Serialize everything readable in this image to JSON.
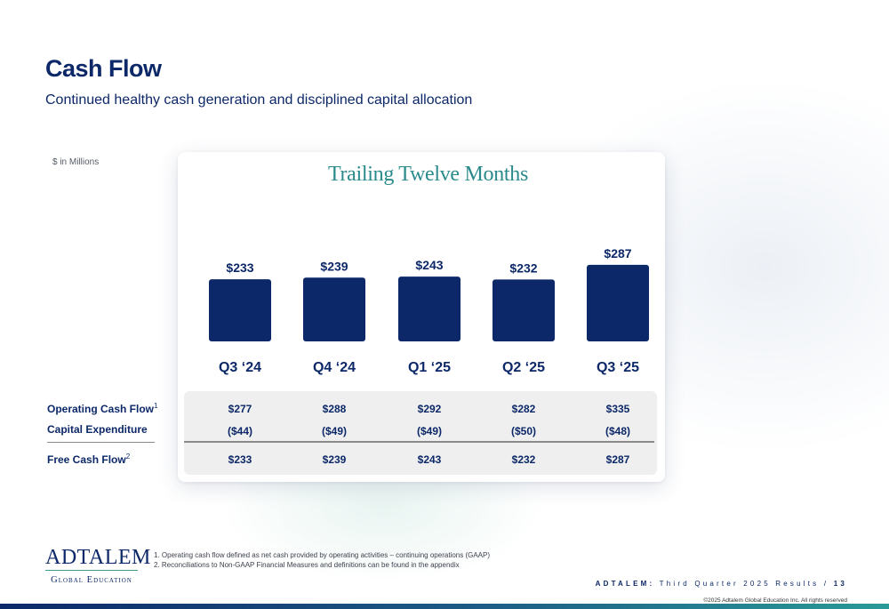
{
  "slide": {
    "title": "Cash Flow",
    "subtitle": "Continued healthy cash generation and disciplined capital allocation",
    "units": "$ in Millions"
  },
  "chart_data": {
    "type": "bar",
    "title": "Trailing Twelve Months",
    "categories": [
      "Q3 ‘24",
      "Q4 ‘24",
      "Q1 ‘25",
      "Q2 ‘25",
      "Q3 ‘25"
    ],
    "values": [
      233,
      239,
      243,
      232,
      287
    ],
    "value_labels": [
      "$233",
      "$239",
      "$243",
      "$232",
      "$287"
    ],
    "xlabel": "",
    "ylabel": "",
    "ylim": [
      0,
      300
    ],
    "grid": false,
    "bar_color": "#0c2868"
  },
  "table": {
    "rows": [
      {
        "label": "Operating Cash Flow",
        "footnote": "1",
        "values": [
          "$277",
          "$288",
          "$292",
          "$282",
          "$335"
        ]
      },
      {
        "label": "Capital Expenditure",
        "footnote": "",
        "values": [
          "($44)",
          "($49)",
          "($49)",
          "($50)",
          "($48)"
        ]
      },
      {
        "label": "Free Cash Flow",
        "footnote": "2",
        "values": [
          "$233",
          "$239",
          "$243",
          "$232",
          "$287"
        ]
      }
    ]
  },
  "footnotes": [
    "1. Operating cash flow defined as net cash provided by operating activities – continuing operations (GAAP)",
    "2. Reconciliations to Non-GAAP Financial Measures and definitions can be found in the appendix"
  ],
  "logo": {
    "main": "ADTALEM",
    "sub": "Global Education"
  },
  "footer": {
    "brand": "ADTALEM:",
    "report": "Third Quarter 2025 Results",
    "separator": "/",
    "page": "13",
    "copyright": "©2025 Adtalem Global Education Inc. All rights reserved"
  },
  "colors": {
    "navy": "#0c2868",
    "teal": "#2a8a8c"
  }
}
